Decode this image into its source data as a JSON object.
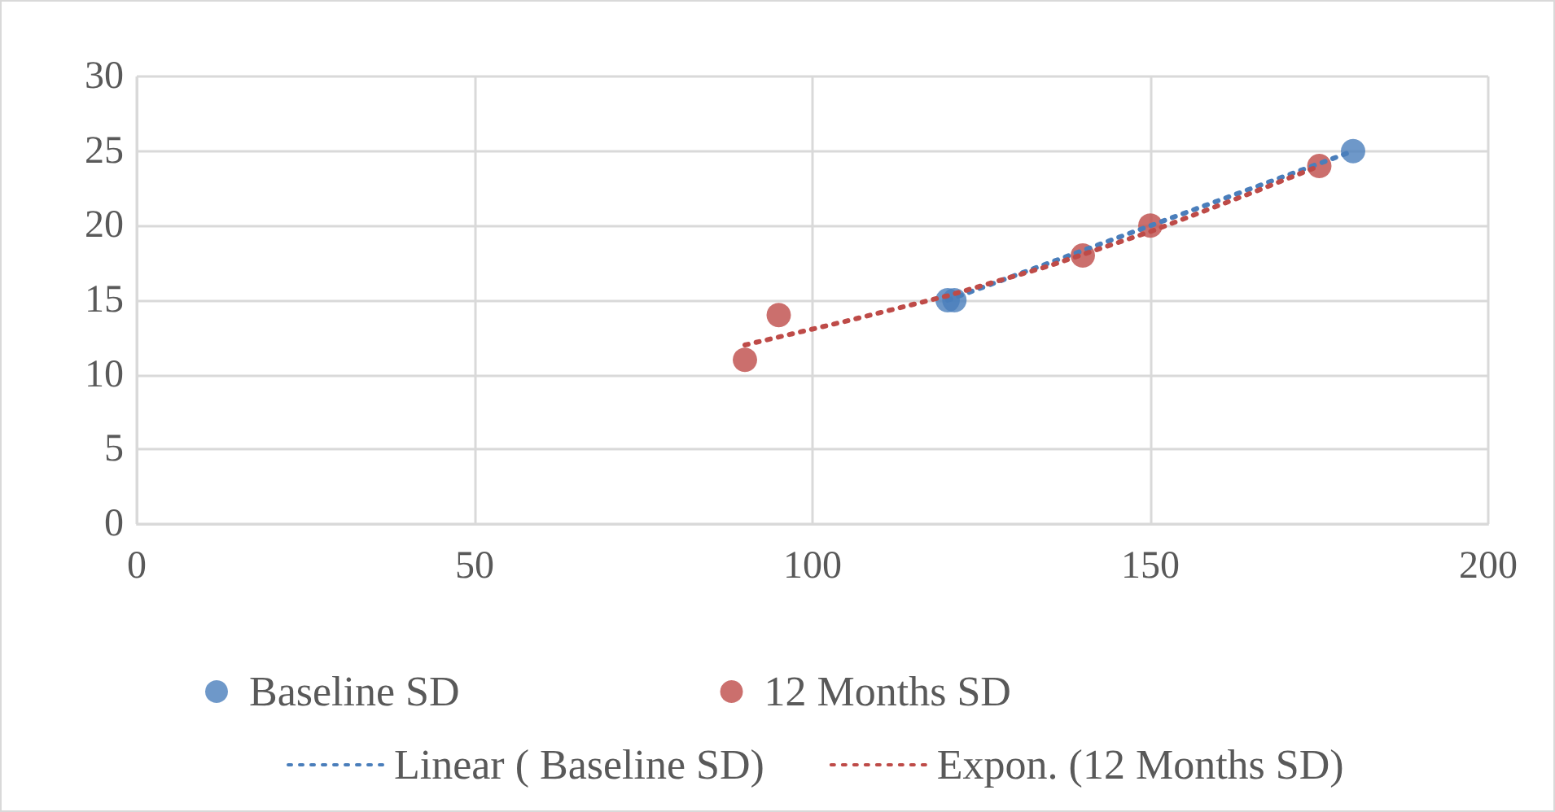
{
  "chart_data": {
    "type": "scatter",
    "xlim": [
      0,
      200
    ],
    "xticks": [
      0,
      50,
      100,
      150,
      200
    ],
    "ylim": [
      0,
      30
    ],
    "yticks": [
      0,
      5,
      10,
      15,
      20,
      25,
      30
    ],
    "grid": true,
    "legend": "bottom",
    "marker": "circle",
    "series": [
      {
        "name": "Baseline SD",
        "color": "#4a7ebb",
        "x": [
          120,
          121,
          180
        ],
        "values": [
          15,
          15,
          25
        ]
      },
      {
        "name": "12 Months SD",
        "color": "#be4b48",
        "x": [
          90,
          95,
          140,
          150,
          175
        ],
        "values": [
          11,
          14,
          18,
          20,
          24
        ]
      },
      {
        "name": "Linear ( Baseline SD)",
        "type": "line",
        "line_style": "dotted",
        "marker": "none",
        "color": "#4a7ebb",
        "x": [
          120,
          180
        ],
        "values": [
          15,
          25
        ]
      },
      {
        "name": "Expon. (12 Months SD)",
        "type": "line",
        "line_style": "dotted",
        "marker": "none",
        "color": "#be4b48",
        "x": [
          90,
          105,
          120,
          135,
          150,
          165,
          175
        ],
        "values": [
          12,
          13.6,
          15.3,
          17.3,
          19.6,
          22.2,
          24
        ]
      }
    ]
  }
}
